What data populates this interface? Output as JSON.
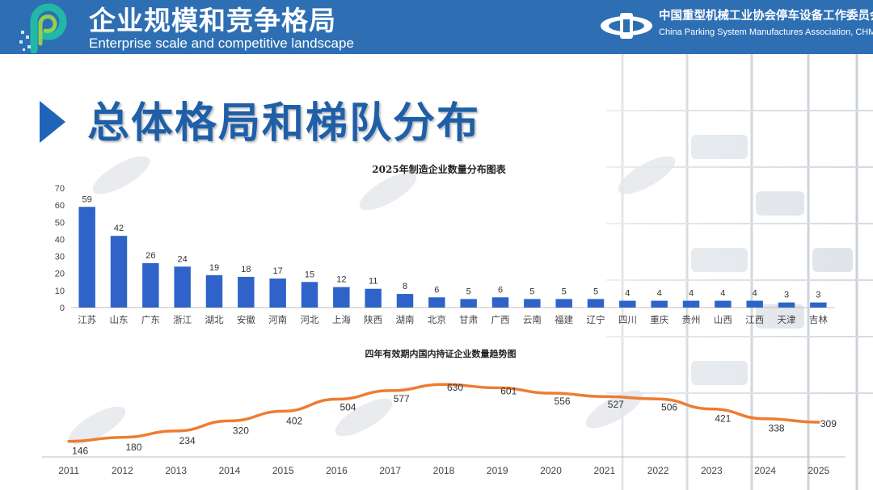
{
  "header": {
    "title_cn": "企业规模和竞争格局",
    "title_en": "Enterprise scale and competitive landscape",
    "assoc_cn": "中国重型机械工业协会停车设备工作委员会",
    "assoc_en": "China Parking System Manufactures Association, CHMIA"
  },
  "section": {
    "title": "总体格局和梯队分布"
  },
  "colors": {
    "header": "#2e6fb4",
    "bar": "#2f63c9",
    "line": "#ed7d31",
    "title": "#1f5fa8"
  },
  "chart_data": [
    {
      "type": "bar",
      "title": "2025年制造企业数量分布图表",
      "categories": [
        "江苏",
        "山东",
        "广东",
        "浙江",
        "湖北",
        "安徽",
        "河南",
        "河北",
        "上海",
        "陕西",
        "湖南",
        "北京",
        "甘肃",
        "广西",
        "云南",
        "福建",
        "辽宁",
        "四川",
        "重庆",
        "贵州",
        "山西",
        "江西",
        "天津",
        "吉林"
      ],
      "values": [
        59,
        42,
        26,
        24,
        19,
        18,
        17,
        15,
        12,
        11,
        8,
        6,
        5,
        6,
        5,
        5,
        5,
        4,
        4,
        4,
        4,
        4,
        3,
        3
      ],
      "ylim": [
        0,
        70
      ],
      "yticks": [
        "0",
        "10",
        "20",
        "30",
        "40",
        "50",
        "60",
        "70"
      ],
      "xlabel": "",
      "ylabel": ""
    },
    {
      "type": "line",
      "title": "四年有效期内国内持证企业数量趋势图",
      "categories": [
        "2011",
        "2012",
        "2013",
        "2014",
        "2015",
        "2016",
        "2017",
        "2018",
        "2019",
        "2020",
        "2021",
        "2022",
        "2023",
        "2024",
        "2025"
      ],
      "values": [
        146,
        180,
        234,
        320,
        402,
        504,
        577,
        630,
        601,
        556,
        527,
        506,
        421,
        338,
        309
      ],
      "ylim": [
        0,
        700
      ]
    }
  ]
}
